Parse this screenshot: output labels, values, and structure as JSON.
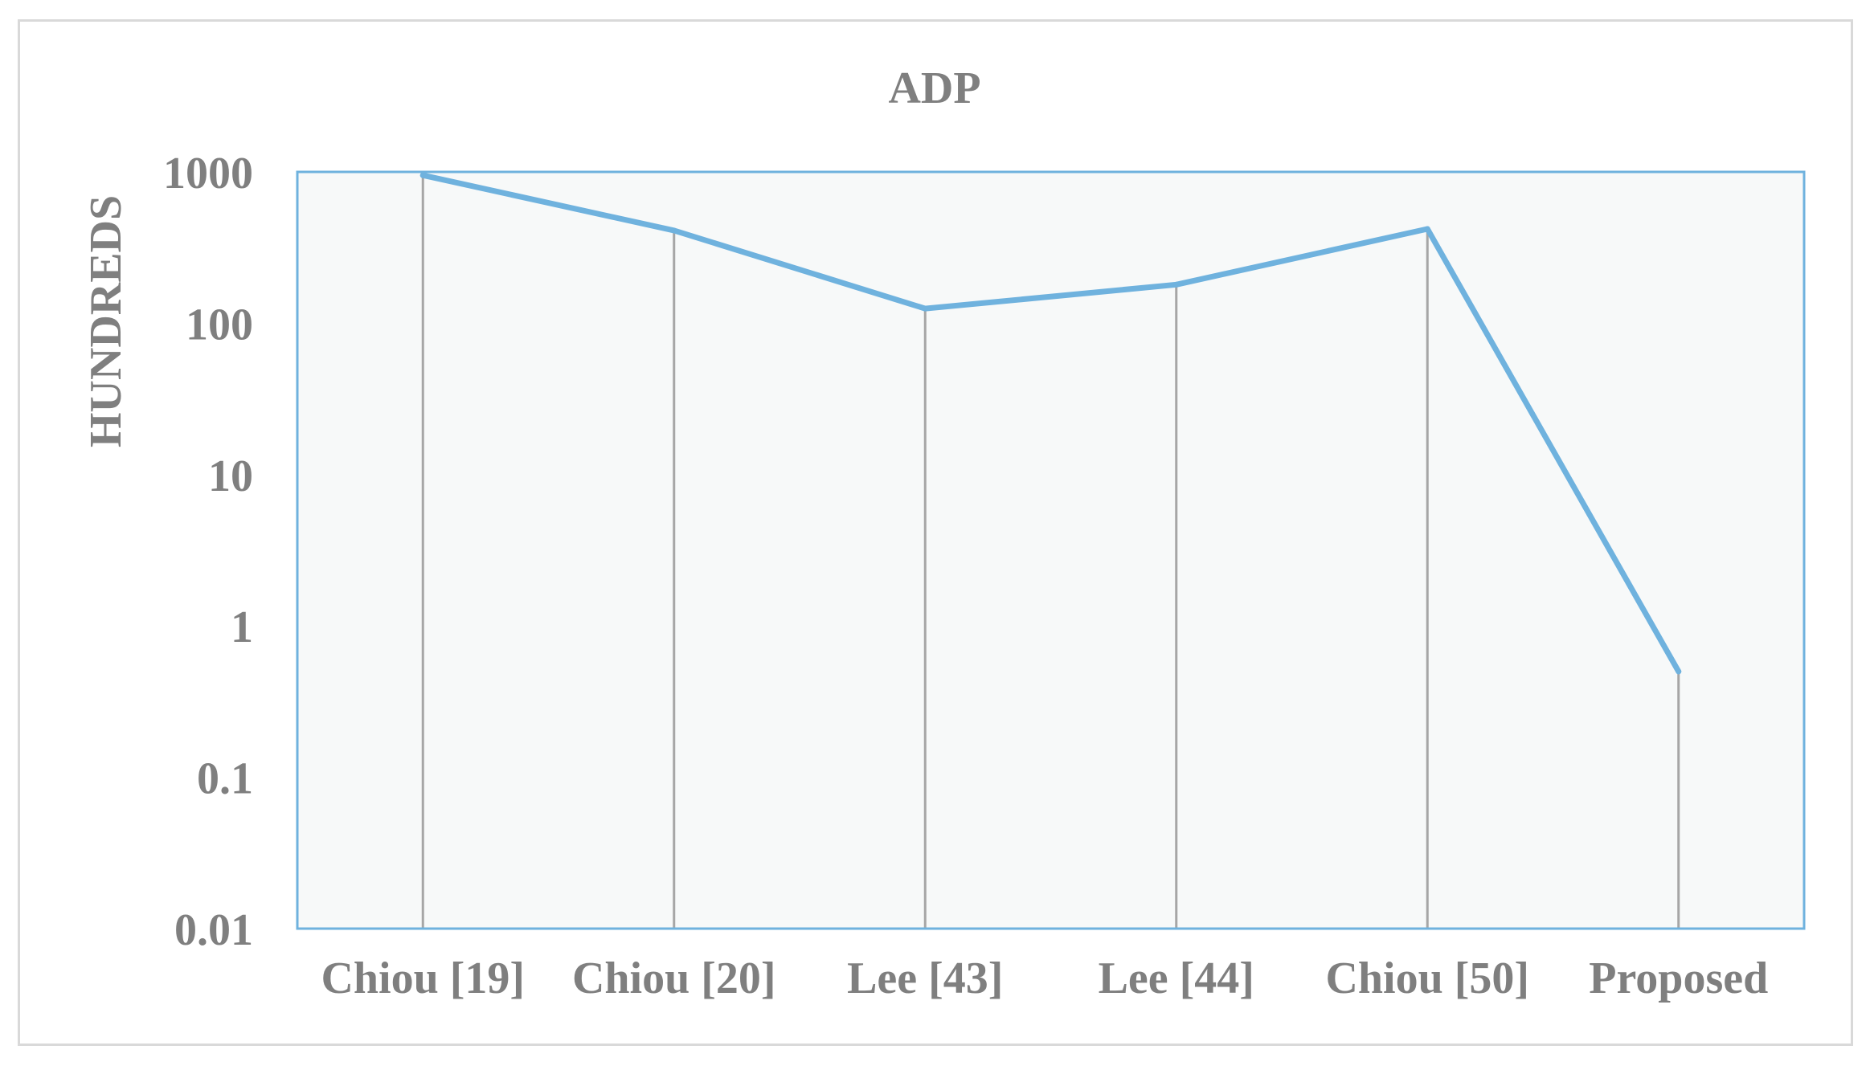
{
  "chart_data": {
    "type": "line",
    "title": "ADP",
    "xlabel": "",
    "ylabel": "HUNDREDS",
    "categories": [
      "Chiou [19]",
      "Chiou [20]",
      "Lee [43]",
      "Lee [44]",
      "Chiou [50]",
      "Proposed"
    ],
    "series": [
      {
        "values": [
          950,
          410,
          125,
          180,
          420,
          0.5
        ]
      }
    ],
    "yscale": "log",
    "ylim": [
      0.01,
      1000
    ],
    "yticks": [
      "0.01",
      "0.1",
      "1",
      "10",
      "100",
      "1000"
    ],
    "drop_lines": true,
    "legend": "none",
    "colors": {
      "line": "#6fb2de",
      "plot_border": "#6fb2de",
      "plot_background": "#f7f9f9",
      "drop_line": "#a6a6a6",
      "text": "#7f7f7f",
      "frame": "#d9d9d9"
    }
  }
}
